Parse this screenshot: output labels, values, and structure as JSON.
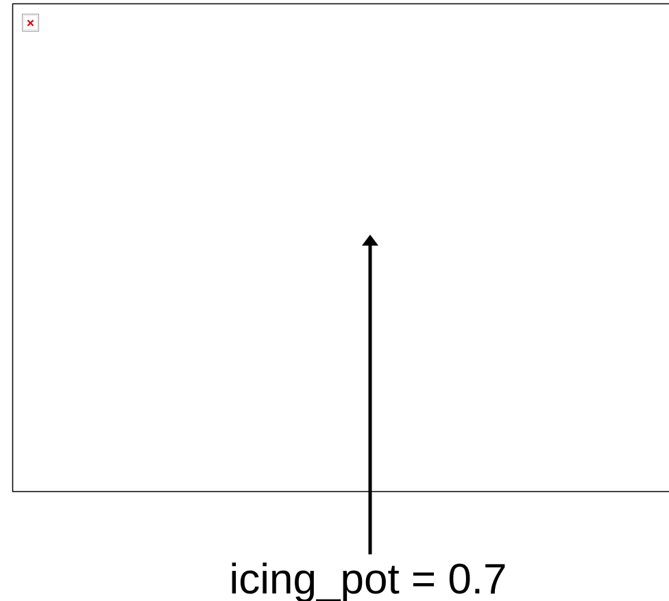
{
  "annotation": {
    "label": "icing_pot = 0.7"
  }
}
